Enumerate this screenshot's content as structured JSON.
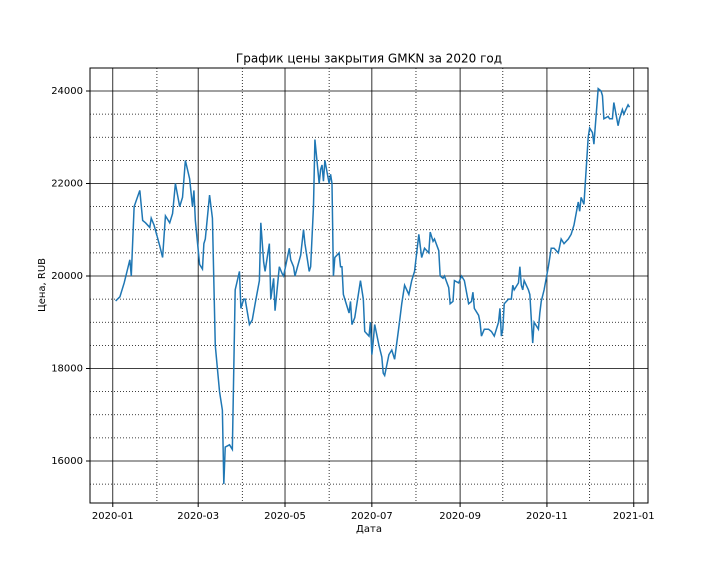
{
  "chart_data": {
    "type": "line",
    "title": "График цены закрытия GMKN за 2020 год",
    "xlabel": "Дата",
    "ylabel": "Цена, RUB",
    "color": "#1f77b4",
    "grid": true,
    "x": [
      "2020-01-03",
      "2020-01-06",
      "2020-01-09",
      "2020-01-13",
      "2020-01-14",
      "2020-01-16",
      "2020-01-20",
      "2020-01-22",
      "2020-01-24",
      "2020-01-27",
      "2020-01-28",
      "2020-01-30",
      "2020-02-03",
      "2020-02-05",
      "2020-02-07",
      "2020-02-10",
      "2020-02-12",
      "2020-02-14",
      "2020-02-17",
      "2020-02-19",
      "2020-02-21",
      "2020-02-24",
      "2020-02-26",
      "2020-02-27",
      "2020-02-28",
      "2020-03-02",
      "2020-03-04",
      "2020-03-05",
      "2020-03-06",
      "2020-03-09",
      "2020-03-11",
      "2020-03-13",
      "2020-03-16",
      "2020-03-18",
      "2020-03-19",
      "2020-03-20",
      "2020-03-23",
      "2020-03-25",
      "2020-03-27",
      "2020-03-30",
      "2020-03-31",
      "2020-04-02",
      "2020-04-03",
      "2020-04-06",
      "2020-04-08",
      "2020-04-10",
      "2020-04-13",
      "2020-04-14",
      "2020-04-16",
      "2020-04-17",
      "2020-04-20",
      "2020-04-21",
      "2020-04-23",
      "2020-04-24",
      "2020-04-27",
      "2020-04-29",
      "2020-04-30",
      "2020-05-04",
      "2020-05-05",
      "2020-05-07",
      "2020-05-08",
      "2020-05-12",
      "2020-05-14",
      "2020-05-15",
      "2020-05-18",
      "2020-05-19",
      "2020-05-21",
      "2020-05-22",
      "2020-05-25",
      "2020-05-26",
      "2020-05-27",
      "2020-05-28",
      "2020-05-29",
      "2020-06-01",
      "2020-06-02",
      "2020-06-03",
      "2020-06-04",
      "2020-06-05",
      "2020-06-08",
      "2020-06-09",
      "2020-06-10",
      "2020-06-11",
      "2020-06-15",
      "2020-06-16",
      "2020-06-17",
      "2020-06-19",
      "2020-06-22",
      "2020-06-23",
      "2020-06-25",
      "2020-06-26",
      "2020-06-29",
      "2020-06-30",
      "2020-07-01",
      "2020-07-02",
      "2020-07-03",
      "2020-07-06",
      "2020-07-08",
      "2020-07-09",
      "2020-07-10",
      "2020-07-13",
      "2020-07-15",
      "2020-07-17",
      "2020-07-20",
      "2020-07-22",
      "2020-07-24",
      "2020-07-27",
      "2020-07-29",
      "2020-07-31",
      "2020-08-03",
      "2020-08-05",
      "2020-08-07",
      "2020-08-10",
      "2020-08-11",
      "2020-08-13",
      "2020-08-14",
      "2020-08-17",
      "2020-08-18",
      "2020-08-20",
      "2020-08-21",
      "2020-08-24",
      "2020-08-25",
      "2020-08-27",
      "2020-08-28",
      "2020-08-31",
      "2020-09-02",
      "2020-09-04",
      "2020-09-07",
      "2020-09-09",
      "2020-09-10",
      "2020-09-11",
      "2020-09-14",
      "2020-09-15",
      "2020-09-16",
      "2020-09-18",
      "2020-09-21",
      "2020-09-23",
      "2020-09-25",
      "2020-09-28",
      "2020-09-29",
      "2020-09-30",
      "2020-10-01",
      "2020-10-02",
      "2020-10-05",
      "2020-10-07",
      "2020-10-08",
      "2020-10-09",
      "2020-10-12",
      "2020-10-13",
      "2020-10-14",
      "2020-10-15",
      "2020-10-16",
      "2020-10-19",
      "2020-10-20",
      "2020-10-22",
      "2020-10-23",
      "2020-10-26",
      "2020-10-27",
      "2020-10-28",
      "2020-10-30",
      "2020-11-02",
      "2020-11-04",
      "2020-11-06",
      "2020-11-09",
      "2020-11-11",
      "2020-11-13",
      "2020-11-16",
      "2020-11-18",
      "2020-11-20",
      "2020-11-23",
      "2020-11-24",
      "2020-11-25",
      "2020-11-27",
      "2020-11-30",
      "2020-12-01",
      "2020-12-03",
      "2020-12-04",
      "2020-12-07",
      "2020-12-09",
      "2020-12-10",
      "2020-12-11",
      "2020-12-14",
      "2020-12-15",
      "2020-12-17",
      "2020-12-18",
      "2020-12-21",
      "2020-12-22",
      "2020-12-24",
      "2020-12-25",
      "2020-12-28",
      "2020-12-29"
    ],
    "values": [
      19460,
      19550,
      19850,
      20350,
      20000,
      21500,
      21850,
      21200,
      21150,
      21050,
      21250,
      21100,
      20650,
      20400,
      21300,
      21150,
      21350,
      22000,
      21500,
      21700,
      22500,
      22100,
      21500,
      21850,
      21200,
      20250,
      20150,
      20700,
      20800,
      21750,
      21250,
      18500,
      17500,
      17100,
      15500,
      16300,
      16350,
      16250,
      19700,
      20100,
      19300,
      19500,
      19500,
      18950,
      19050,
      19400,
      19900,
      21150,
      20300,
      20100,
      20700,
      19500,
      19950,
      19250,
      20200,
      20050,
      20000,
      20600,
      20350,
      20200,
      20000,
      20450,
      21000,
      20700,
      20100,
      20200,
      21500,
      22950,
      22000,
      22300,
      22400,
      22050,
      22500,
      22000,
      22200,
      22000,
      20000,
      20400,
      20500,
      20200,
      20200,
      19600,
      19200,
      19450,
      18950,
      19100,
      19700,
      19900,
      19500,
      18800,
      18700,
      19000,
      18300,
      18600,
      18950,
      18500,
      18250,
      17900,
      17850,
      18300,
      18400,
      18200,
      18900,
      19400,
      19800,
      19600,
      19900,
      20100,
      20900,
      20400,
      20600,
      20500,
      20950,
      20750,
      20800,
      20550,
      20000,
      19950,
      20000,
      19750,
      19400,
      19450,
      19900,
      19850,
      20000,
      19900,
      19400,
      19450,
      19650,
      19300,
      19150,
      19000,
      18700,
      18850,
      18850,
      18800,
      18700,
      19000,
      19300,
      18700,
      18850,
      19400,
      19500,
      19500,
      19800,
      19700,
      19850,
      20200,
      19800,
      19700,
      19900,
      19700,
      19600,
      18550,
      19000,
      18850,
      19200,
      19450,
      19700,
      20200,
      20600,
      20600,
      20500,
      20800,
      20700,
      20800,
      20900,
      21100,
      21600,
      21400,
      21700,
      21550,
      23000,
      23200,
      23100,
      22850,
      24050,
      24000,
      23900,
      23400,
      23450,
      23400,
      23400,
      23750,
      23250,
      23400,
      23600,
      23500,
      23700,
      23650
    ],
    "xlim": [
      "2019-12-16",
      "2021-01-11"
    ],
    "xticks": [
      {
        "value": "2020-01-01",
        "label": "2020-01"
      },
      {
        "value": "2020-03-01",
        "label": "2020-03"
      },
      {
        "value": "2020-05-01",
        "label": "2020-05"
      },
      {
        "value": "2020-07-01",
        "label": "2020-07"
      },
      {
        "value": "2020-09-01",
        "label": "2020-09"
      },
      {
        "value": "2020-11-01",
        "label": "2020-11"
      },
      {
        "value": "2021-01-01",
        "label": "2021-01"
      }
    ],
    "xminorticks": [
      "2020-02-01",
      "2020-04-01",
      "2020-06-01",
      "2020-08-01",
      "2020-10-01",
      "2020-12-01"
    ],
    "ylim": [
      15092,
      24497
    ],
    "yticks": [
      16000,
      18000,
      20000,
      22000,
      24000
    ],
    "yminorticks": [
      15500,
      16500,
      17000,
      17500,
      18500,
      19000,
      19500,
      20500,
      21000,
      21500,
      22500,
      23000,
      23500
    ]
  }
}
